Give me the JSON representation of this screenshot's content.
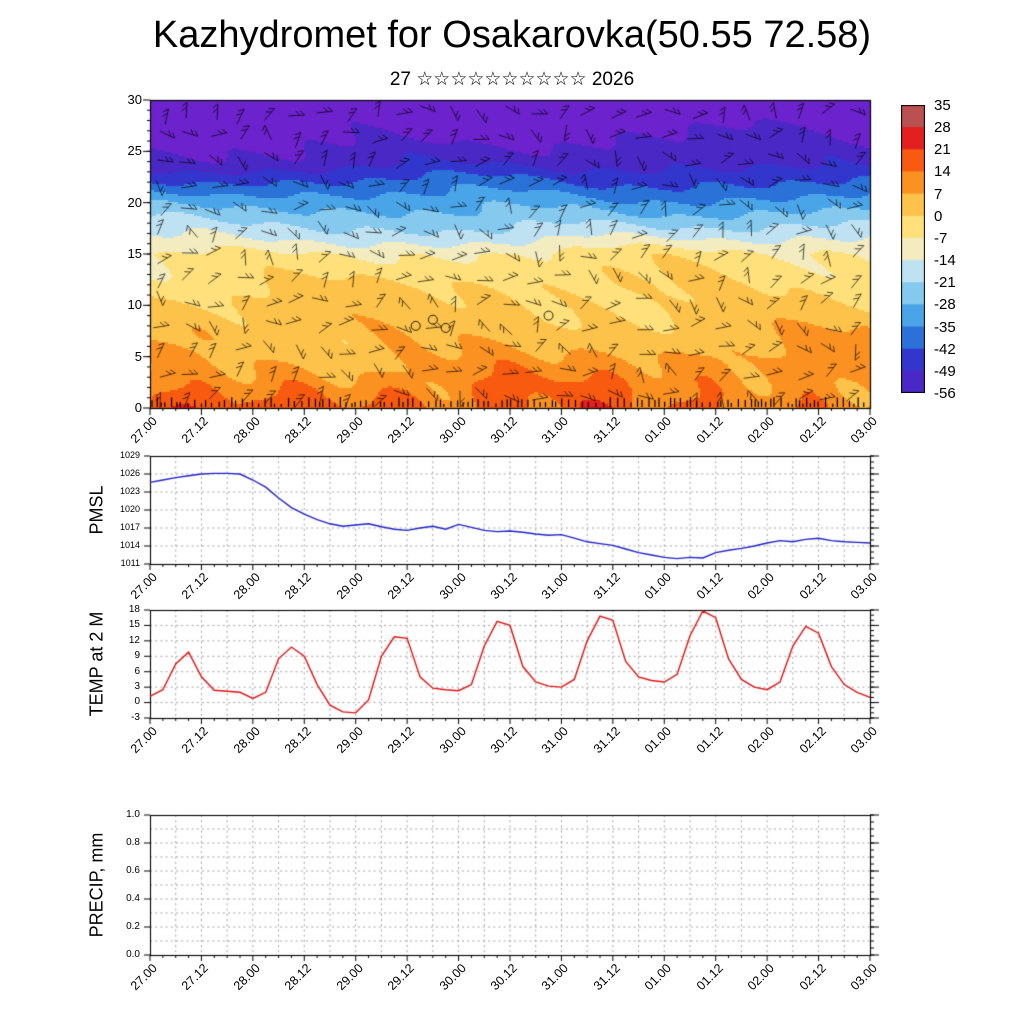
{
  "title": "Kazhydromet for Osakarovka(50.55 72.58)",
  "subtitle": "27 ☆☆☆☆☆☆☆☆☆☆ 2026",
  "x_axis": {
    "total_hours": 168,
    "major_step_h": 12,
    "minor_step_h": 3,
    "grid_step_h": 6,
    "tick_labels": [
      "27.00",
      "27.12",
      "28.00",
      "28.12",
      "29.00",
      "29.12",
      "30.00",
      "30.12",
      "31.00",
      "31.12",
      "01.00",
      "01.12",
      "02.00",
      "02.12",
      "03.00"
    ]
  },
  "chart_data": [
    {
      "type": "heatmap",
      "name": "Upper-air temperature cross-section with wind barbs",
      "ylim": [
        0,
        30
      ],
      "yticks": [
        0,
        5,
        10,
        15,
        20,
        25,
        30
      ],
      "colorbar_ticks": [
        "35",
        "28",
        "21",
        "14",
        "7",
        "0",
        "-7",
        "-14",
        "-21",
        "-28",
        "-35",
        "-42",
        "-49",
        "-56"
      ],
      "band_thresholds": [
        28,
        21,
        14,
        7,
        0,
        -7,
        -14,
        -21,
        -28,
        -35,
        -42,
        -49,
        -56
      ],
      "band_colors": [
        "#bb5050",
        "#e31f1f",
        "#f85a10",
        "#fb9120",
        "#fdc24a",
        "#ffe07a",
        "#f2ecc0",
        "#bfe2f2",
        "#86c9ee",
        "#4aa5e8",
        "#2a72d8",
        "#3336cc",
        "#4a28c6",
        "#6c22cc"
      ],
      "profile_points": [
        [
          0,
          11
        ],
        [
          12,
          -1
        ],
        [
          15,
          -6
        ],
        [
          17,
          -17
        ],
        [
          20,
          -31
        ],
        [
          24,
          -52
        ],
        [
          30,
          -64
        ]
      ]
    },
    {
      "type": "line",
      "name": "PMSL",
      "color": "#2121cc",
      "ylim": [
        1011,
        1029
      ],
      "yticks": [
        1011,
        1014,
        1017,
        1020,
        1023,
        1026,
        1029
      ],
      "ytick_labels": [
        "1011",
        "1014",
        "1017",
        "1020",
        "1023",
        "1026",
        "1029"
      ],
      "grid_y_step": 3,
      "right_minor_step": 1,
      "x_step_h": 3,
      "values": [
        1024.6,
        1025.0,
        1025.4,
        1025.7,
        1026.0,
        1026.1,
        1026.1,
        1026.0,
        1025.0,
        1023.8,
        1022.0,
        1020.4,
        1019.3,
        1018.4,
        1017.7,
        1017.3,
        1017.5,
        1017.7,
        1017.2,
        1016.8,
        1016.6,
        1017.0,
        1017.3,
        1016.8,
        1017.6,
        1017.1,
        1016.6,
        1016.4,
        1016.5,
        1016.3,
        1016.0,
        1015.8,
        1015.9,
        1015.3,
        1014.7,
        1014.4,
        1014.1,
        1013.5,
        1012.9,
        1012.5,
        1012.1,
        1011.9,
        1012.1,
        1012.0,
        1012.9,
        1013.3,
        1013.6,
        1014.0,
        1014.5,
        1014.9,
        1014.7,
        1015.1,
        1015.3,
        1014.9,
        1014.7,
        1014.6,
        1014.5
      ]
    },
    {
      "type": "line",
      "name": "TEMP at 2 M",
      "color": "#e01212",
      "ylim": [
        -3,
        18
      ],
      "yticks": [
        -3,
        0,
        3,
        6,
        9,
        12,
        15,
        18
      ],
      "ytick_labels": [
        "-3",
        "0",
        "3",
        "6",
        "9",
        "12",
        "15",
        "18"
      ],
      "grid_y_step": 3,
      "right_minor_step": 1,
      "x_step_h": 3,
      "values": [
        1.2,
        2.5,
        7.5,
        9.8,
        5.0,
        2.4,
        2.2,
        2.0,
        0.8,
        2.0,
        8.5,
        10.8,
        9.0,
        3.5,
        -0.5,
        -1.8,
        -2.0,
        0.5,
        9.0,
        12.8,
        12.5,
        5.0,
        2.8,
        2.5,
        2.3,
        3.5,
        11.0,
        15.8,
        15.0,
        7.0,
        4.0,
        3.2,
        3.0,
        4.5,
        12.0,
        16.8,
        16.0,
        8.0,
        5.0,
        4.3,
        4.0,
        5.5,
        13.0,
        17.8,
        16.5,
        8.5,
        4.5,
        3.0,
        2.5,
        4.0,
        11.0,
        14.8,
        13.5,
        7.0,
        3.5,
        2.0,
        1.0
      ]
    },
    {
      "type": "line",
      "name": "PRECIP, mm",
      "color": "#2121cc",
      "ylim": [
        0,
        1
      ],
      "yticks": [
        0,
        0.2,
        0.4,
        0.6,
        0.8,
        1
      ],
      "ytick_labels": [
        "0.0",
        "0.2",
        "0.4",
        "0.6",
        "0.8",
        "1.0"
      ],
      "grid_y_step": 0.1,
      "right_minor_step": 0.05,
      "x_step_h": 3,
      "values": []
    }
  ]
}
